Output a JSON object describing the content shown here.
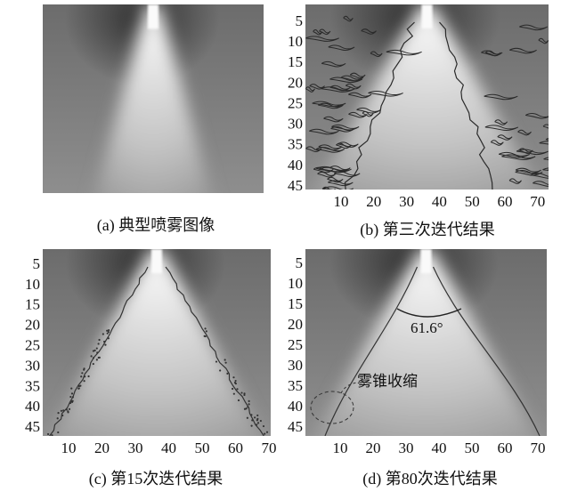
{
  "panels": [
    {
      "caption": "(a) 典型喷雾图像"
    },
    {
      "caption": "(b) 第三次迭代结果",
      "yticks": [
        5,
        10,
        15,
        20,
        25,
        30,
        35,
        40,
        45
      ],
      "xticks": [
        10,
        20,
        30,
        40,
        50,
        60,
        70
      ]
    },
    {
      "caption": "(c) 第15次迭代结果",
      "yticks": [
        5,
        10,
        15,
        20,
        25,
        30,
        35,
        40,
        45
      ],
      "xticks": [
        10,
        20,
        30,
        40,
        50,
        60,
        70
      ]
    },
    {
      "caption": "(d) 第80次迭代结果",
      "yticks": [
        5,
        10,
        15,
        20,
        25,
        30,
        35,
        40,
        45
      ],
      "xticks": [
        10,
        20,
        30,
        40,
        50,
        60,
        70
      ],
      "annotations": [
        "61.6°",
        "雾锥收缩"
      ]
    }
  ]
}
